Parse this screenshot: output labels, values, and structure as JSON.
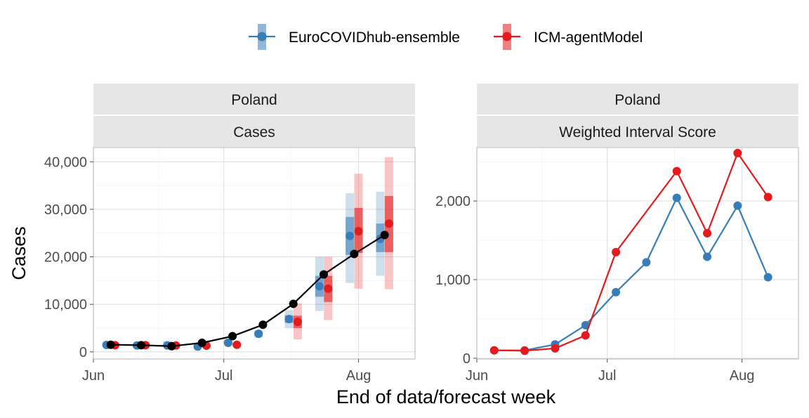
{
  "legend": {
    "items": [
      {
        "label": "EuroCOVIDhub-ensemble",
        "color": "#377EB8"
      },
      {
        "label": "ICM-agentModel",
        "color": "#E41A1C"
      }
    ]
  },
  "xlabel": "End of data/forecast week",
  "chart_data": [
    {
      "type": "line",
      "facet": [
        "Poland",
        "Cases"
      ],
      "ylabel": "Cases",
      "xlim": [
        "2021-06-01",
        "2021-08-14"
      ],
      "x_ticks": [
        {
          "date": "2021-06-01",
          "label": "Jun"
        },
        {
          "date": "2021-07-01",
          "label": "Jul"
        },
        {
          "date": "2021-08-01",
          "label": "Aug"
        }
      ],
      "ylim": [
        -1500,
        43000
      ],
      "y_ticks": [
        {
          "value": 0,
          "label": "0"
        },
        {
          "value": 10000,
          "label": "10,000"
        },
        {
          "value": 20000,
          "label": "20,000"
        },
        {
          "value": 30000,
          "label": "30,000"
        },
        {
          "value": 40000,
          "label": "40,000"
        }
      ],
      "grid": true,
      "observed": {
        "color": "#000000",
        "x": [
          "2021-06-05",
          "2021-06-12",
          "2021-06-19",
          "2021-06-26",
          "2021-07-03",
          "2021-07-10",
          "2021-07-17",
          "2021-07-24",
          "2021-07-31",
          "2021-08-07"
        ],
        "y": [
          1500,
          1400,
          1200,
          1900,
          3300,
          5700,
          10100,
          16300,
          20600,
          24600
        ]
      },
      "forecasts": [
        {
          "name": "EuroCOVIDhub-ensemble",
          "color": "#377EB8",
          "x": [
            "2021-06-04",
            "2021-06-11",
            "2021-06-18",
            "2021-06-25",
            "2021-07-02",
            "2021-07-09",
            "2021-07-16",
            "2021-07-23",
            "2021-07-30",
            "2021-08-06"
          ],
          "median": [
            1450,
            1350,
            1350,
            1100,
            1900,
            3800,
            6900,
            13800,
            24400,
            23800
          ],
          "inner_lo": [
            1300,
            1250,
            1200,
            1000,
            1700,
            3500,
            6100,
            11600,
            20400,
            21000
          ],
          "inner_hi": [
            1600,
            1450,
            1500,
            1250,
            2200,
            4200,
            7700,
            16000,
            28400,
            27000
          ],
          "outer_lo": [
            1150,
            1100,
            1000,
            850,
            1350,
            3000,
            5000,
            8600,
            14500,
            16000
          ],
          "outer_hi": [
            1800,
            1650,
            2300,
            1500,
            2700,
            4600,
            8800,
            20000,
            33400,
            33700
          ]
        },
        {
          "name": "ICM-agentModel",
          "color": "#E41A1C",
          "x": [
            "2021-06-06",
            "2021-06-13",
            "2021-06-20",
            "2021-06-27",
            "2021-07-04",
            "2021-07-11",
            "2021-07-18",
            "2021-07-25",
            "2021-08-01",
            "2021-08-08"
          ],
          "median": [
            1400,
            1400,
            1350,
            1300,
            1500,
            null,
            6300,
            13300,
            25400,
            27000
          ],
          "inner_lo": [
            1300,
            1300,
            1250,
            1200,
            1350,
            null,
            5000,
            10500,
            20800,
            21000
          ],
          "inner_hi": [
            1500,
            1500,
            1450,
            1400,
            1700,
            null,
            7600,
            16000,
            30300,
            32800
          ],
          "outer_lo": [
            1150,
            1150,
            1100,
            1050,
            1150,
            null,
            2600,
            6700,
            13300,
            13200
          ],
          "outer_hi": [
            1650,
            1650,
            1600,
            1550,
            1900,
            null,
            10200,
            20000,
            37500,
            41000
          ]
        }
      ]
    },
    {
      "type": "line",
      "facet": [
        "Poland",
        "Weighted Interval Score"
      ],
      "xlim": [
        "2021-06-01",
        "2021-08-14"
      ],
      "x_ticks": [
        {
          "date": "2021-06-01",
          "label": "Jun"
        },
        {
          "date": "2021-07-01",
          "label": "Jul"
        },
        {
          "date": "2021-08-01",
          "label": "Aug"
        }
      ],
      "ylim": [
        -10,
        2680
      ],
      "y_ticks": [
        {
          "value": 0,
          "label": "0"
        },
        {
          "value": 1000,
          "label": "1,000"
        },
        {
          "value": 2000,
          "label": "2,000"
        }
      ],
      "grid": true,
      "series": [
        {
          "name": "EuroCOVIDhub-ensemble",
          "color": "#377EB8",
          "x": [
            "2021-06-05",
            "2021-06-12",
            "2021-06-19",
            "2021-06-26",
            "2021-07-03",
            "2021-07-10",
            "2021-07-17",
            "2021-07-24",
            "2021-07-31",
            "2021-08-07"
          ],
          "y": [
            100,
            100,
            175,
            420,
            840,
            1220,
            2040,
            1290,
            1940,
            1030
          ]
        },
        {
          "name": "ICM-agentModel",
          "color": "#E41A1C",
          "x": [
            "2021-06-05",
            "2021-06-12",
            "2021-06-19",
            "2021-06-26",
            "2021-07-03",
            "2021-07-10",
            "2021-07-17",
            "2021-07-24",
            "2021-07-31",
            "2021-08-07"
          ],
          "y": [
            100,
            95,
            125,
            290,
            1350,
            null,
            2380,
            1590,
            2610,
            2050
          ]
        }
      ]
    }
  ]
}
